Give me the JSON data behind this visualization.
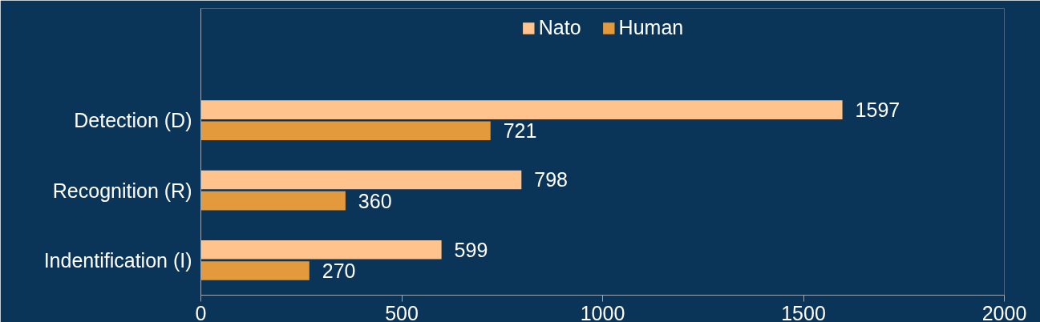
{
  "chart_data": {
    "type": "bar",
    "orientation": "horizontal",
    "categories": [
      "Detection (D)",
      "Recognition (R)",
      "Indentification (I)"
    ],
    "series": [
      {
        "name": "Nato",
        "color": "#ffc48e",
        "values": [
          1597,
          798,
          599
        ]
      },
      {
        "name": "Human",
        "color": "#e39a3c",
        "values": [
          721,
          360,
          270
        ]
      }
    ],
    "xlim": [
      0,
      2000
    ],
    "xticks": [
      0,
      500,
      1000,
      1500,
      2000
    ],
    "grid": false,
    "legend": "top",
    "data_labels": true
  }
}
